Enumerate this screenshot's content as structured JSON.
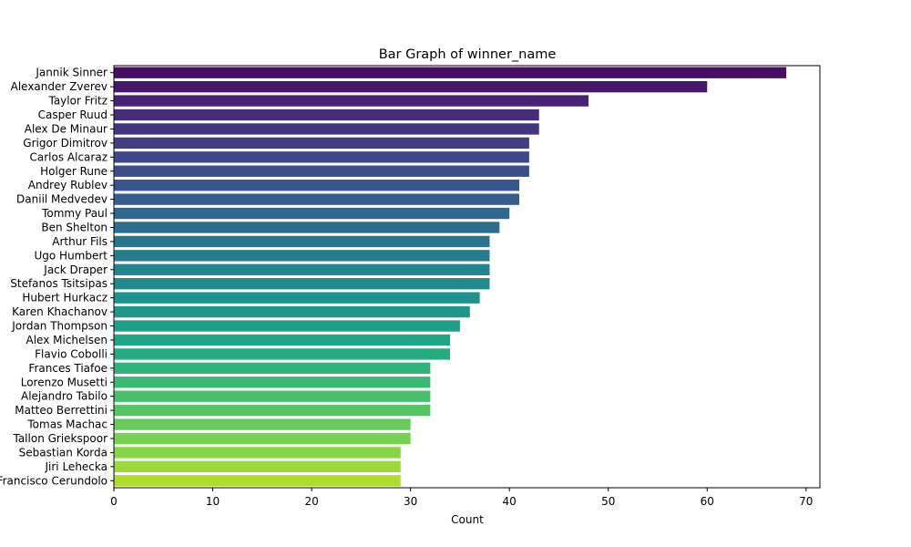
{
  "chart_data": {
    "type": "bar",
    "orientation": "horizontal",
    "title": "Bar Graph of winner_name",
    "xlabel": "Count",
    "ylabel": "",
    "xlim": [
      0,
      71.4
    ],
    "xticks": [
      0,
      10,
      20,
      30,
      40,
      50,
      60,
      70
    ],
    "grid": false,
    "colormap": "viridis",
    "categories": [
      "Jannik Sinner",
      "Alexander Zverev",
      "Taylor Fritz",
      "Casper Ruud",
      "Alex De Minaur",
      "Grigor Dimitrov",
      "Carlos Alcaraz",
      "Holger Rune",
      "Andrey Rublev",
      "Daniil Medvedev",
      "Tommy Paul",
      "Ben Shelton",
      "Arthur Fils",
      "Ugo Humbert",
      "Jack Draper",
      "Stefanos Tsitsipas",
      "Hubert Hurkacz",
      "Karen Khachanov",
      "Jordan Thompson",
      "Alex Michelsen",
      "Flavio Cobolli",
      "Frances Tiafoe",
      "Lorenzo Musetti",
      "Alejandro Tabilo",
      "Matteo Berrettini",
      "Tomas Machac",
      "Tallon Griekspoor",
      "Sebastian Korda",
      "Jiri Lehecka",
      "Francisco Cerundolo"
    ],
    "values": [
      68,
      60,
      48,
      43,
      43,
      42,
      42,
      42,
      41,
      41,
      40,
      39,
      38,
      38,
      38,
      38,
      37,
      36,
      35,
      34,
      34,
      32,
      32,
      32,
      32,
      30,
      30,
      29,
      29,
      29
    ]
  }
}
